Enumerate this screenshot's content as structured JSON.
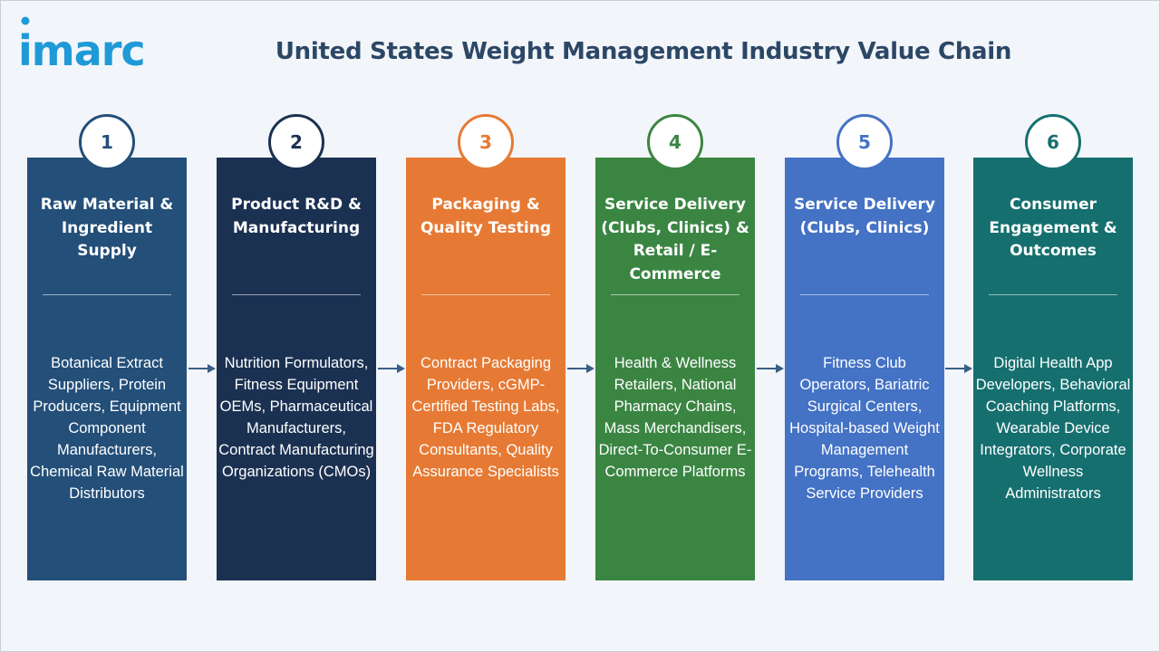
{
  "header": {
    "logo_text": "imarc",
    "title": "United States Weight Management Industry Value Chain"
  },
  "colors": {
    "logo": "#1f9ad6",
    "title": "#2c4766",
    "arrow": "#3a5f86"
  },
  "stages": [
    {
      "number": "1",
      "title": "Raw Material & Ingredient Supply",
      "description": "Botanical Extract Suppliers, Protein Producers, Equipment Component Manufacturers, Chemical Raw Material Distributors",
      "color": "#234f79",
      "badge_border": "#234f79",
      "number_color": "#234f79"
    },
    {
      "number": "2",
      "title": "Product R&D & Manufacturing",
      "description": "Nutrition Formulators, Fitness Equipment OEMs, Pharmaceutical Manufacturers, Contract Manufacturing Organizations (CMOs)",
      "color": "#1b3152",
      "badge_border": "#1b3152",
      "number_color": "#1b3152"
    },
    {
      "number": "3",
      "title": "Packaging & Quality Testing",
      "description": "Contract Packaging Providers, cGMP-Certified Testing Labs, FDA Regulatory Consultants, Quality Assurance Specialists",
      "color": "#e67a34",
      "badge_border": "#e67a34",
      "number_color": "#e67a34"
    },
    {
      "number": "4",
      "title": "Service Delivery (Clubs, Clinics) & Retail / E-Commerce",
      "description": "Health & Wellness Retailers, National Pharmacy Chains, Mass Merchandisers, Direct-To-Consumer E-Commerce Platforms",
      "color": "#3b8543",
      "badge_border": "#3b8543",
      "number_color": "#3b8543"
    },
    {
      "number": "5",
      "title": "Service Delivery (Clubs, Clinics)",
      "description": "Fitness Club Operators, Bariatric Surgical Centers, Hospital-based Weight Management Programs, Telehealth Service Providers",
      "color": "#4472c4",
      "badge_border": "#4472c4",
      "number_color": "#4472c4"
    },
    {
      "number": "6",
      "title": "Consumer Engagement & Outcomes",
      "description": "Digital Health App Developers, Behavioral Coaching Platforms, Wearable Device Integrators, Corporate Wellness Administrators",
      "color": "#166f6f",
      "badge_border": "#166f6f",
      "number_color": "#166f6f"
    }
  ]
}
